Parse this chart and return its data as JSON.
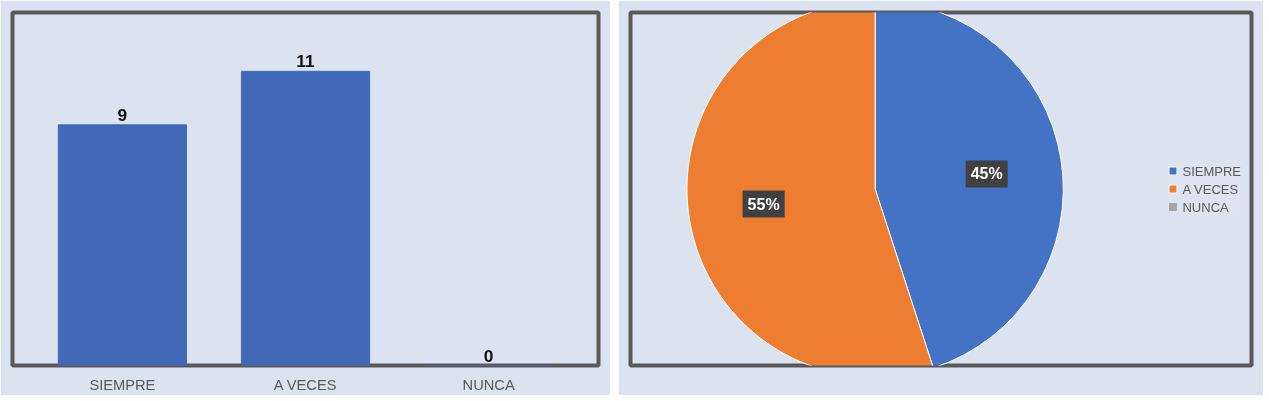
{
  "chart_data": [
    {
      "type": "bar",
      "categories": [
        "SIEMPRE",
        "A VECES",
        "NUNCA"
      ],
      "values": [
        9,
        11,
        0
      ],
      "color": "#4268b8",
      "data_labels": true,
      "tick_labels": "x",
      "grid": false
    },
    {
      "type": "pie",
      "categories": [
        "SIEMPRE",
        "A VECES",
        "NUNCA"
      ],
      "values": [
        45,
        55,
        0
      ],
      "colors": [
        "#4472c4",
        "#ed7d31",
        "#a5a5a5"
      ],
      "value_labels": [
        "45%",
        "55%",
        null
      ],
      "legend": "right"
    }
  ]
}
